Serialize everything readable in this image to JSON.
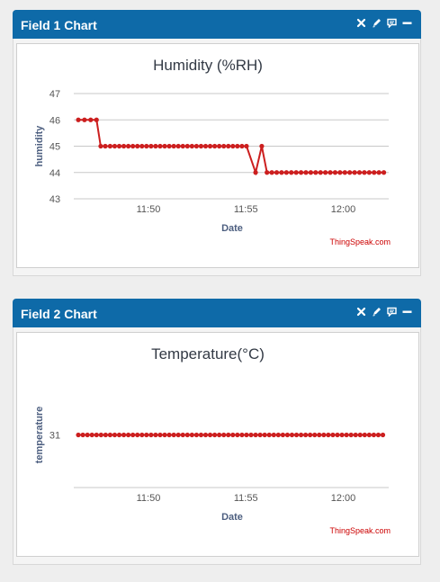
{
  "panels": [
    {
      "title": "Field 1 Chart",
      "icons": [
        "close-icon",
        "edit-icon",
        "comment-icon",
        "minimize-icon"
      ],
      "chart_data": {
        "type": "line",
        "title": "Humidity (%RH)",
        "xlabel": "Date",
        "ylabel": "humidity",
        "credit": "ThingSpeak.com",
        "color": "#cc1f1f",
        "ylim": [
          43,
          47
        ],
        "yticks": [
          43,
          44,
          45,
          46,
          47
        ],
        "xlim": [
          "11:46:10",
          "12:02:20"
        ],
        "xticks": [
          "11:50",
          "11:55",
          "12:00"
        ],
        "grid": true,
        "series": [
          {
            "x": [
              "11:46:24",
              "11:46:43",
              "11:47:02",
              "11:47:20",
              "11:47:33",
              "11:47:47",
              "11:48:02",
              "11:48:16",
              "11:48:30",
              "11:48:44",
              "11:48:58",
              "11:49:12",
              "11:49:26",
              "11:49:40",
              "11:49:54",
              "11:50:08",
              "11:50:22",
              "11:50:36",
              "11:50:50",
              "11:51:04",
              "11:51:18",
              "11:51:32",
              "11:51:46",
              "11:52:00",
              "11:52:14",
              "11:52:28",
              "11:52:42",
              "11:52:56",
              "11:53:10",
              "11:53:24",
              "11:53:38",
              "11:53:52",
              "11:54:06",
              "11:54:20",
              "11:54:34",
              "11:54:48",
              "11:55:02",
              "11:55:30",
              "11:55:49",
              "11:56:05",
              "11:56:20",
              "11:56:35",
              "11:56:50",
              "11:57:05",
              "11:57:20",
              "11:57:35",
              "11:57:50",
              "11:58:05",
              "11:58:20",
              "11:58:35",
              "11:58:50",
              "11:59:05",
              "11:59:20",
              "11:59:35",
              "11:59:50",
              "12:00:05",
              "12:00:20",
              "12:00:35",
              "12:00:50",
              "12:01:05",
              "12:01:20",
              "12:01:35",
              "12:01:50",
              "12:02:05"
            ],
            "y": [
              46,
              46,
              46,
              46,
              45,
              45,
              45,
              45,
              45,
              45,
              45,
              45,
              45,
              45,
              45,
              45,
              45,
              45,
              45,
              45,
              45,
              45,
              45,
              45,
              45,
              45,
              45,
              45,
              45,
              45,
              45,
              45,
              45,
              45,
              45,
              45,
              45,
              44,
              45,
              44,
              44,
              44,
              44,
              44,
              44,
              44,
              44,
              44,
              44,
              44,
              44,
              44,
              44,
              44,
              44,
              44,
              44,
              44,
              44,
              44,
              44,
              44,
              44,
              44
            ]
          }
        ]
      }
    },
    {
      "title": "Field 2 Chart",
      "icons": [
        "close-icon",
        "edit-icon",
        "comment-icon",
        "minimize-icon"
      ],
      "chart_data": {
        "type": "line",
        "title": "Temperature(°C)",
        "xlabel": "Date",
        "ylabel": "temperature",
        "credit": "ThingSpeak.com",
        "color": "#cc1f1f",
        "ylim": [
          29,
          33
        ],
        "yticks": [
          31
        ],
        "xlim": [
          "11:46:10",
          "12:02:20"
        ],
        "xticks": [
          "11:50",
          "11:55",
          "12:00"
        ],
        "grid": false,
        "series": [
          {
            "x": [
              "11:46:24",
              "11:46:38",
              "11:46:52",
              "11:47:06",
              "11:47:20",
              "11:47:34",
              "11:47:48",
              "11:48:02",
              "11:48:16",
              "11:48:30",
              "11:48:44",
              "11:48:58",
              "11:49:12",
              "11:49:26",
              "11:49:40",
              "11:49:54",
              "11:50:08",
              "11:50:22",
              "11:50:36",
              "11:50:50",
              "11:51:04",
              "11:51:18",
              "11:51:32",
              "11:51:46",
              "11:52:00",
              "11:52:14",
              "11:52:28",
              "11:52:42",
              "11:52:56",
              "11:53:10",
              "11:53:24",
              "11:53:38",
              "11:53:52",
              "11:54:06",
              "11:54:20",
              "11:54:34",
              "11:54:48",
              "11:55:02",
              "11:55:16",
              "11:55:30",
              "11:55:44",
              "11:55:58",
              "11:56:12",
              "11:56:26",
              "11:56:40",
              "11:56:54",
              "11:57:08",
              "11:57:22",
              "11:57:36",
              "11:57:50",
              "11:58:04",
              "11:58:18",
              "11:58:32",
              "11:58:46",
              "11:59:00",
              "11:59:14",
              "11:59:28",
              "11:59:42",
              "11:59:56",
              "12:00:10",
              "12:00:24",
              "12:00:38",
              "12:00:52",
              "12:01:06",
              "12:01:20",
              "12:01:34",
              "12:01:48",
              "12:02:02"
            ],
            "y": [
              31,
              31,
              31,
              31,
              31,
              31,
              31,
              31,
              31,
              31,
              31,
              31,
              31,
              31,
              31,
              31,
              31,
              31,
              31,
              31,
              31,
              31,
              31,
              31,
              31,
              31,
              31,
              31,
              31,
              31,
              31,
              31,
              31,
              31,
              31,
              31,
              31,
              31,
              31,
              31,
              31,
              31,
              31,
              31,
              31,
              31,
              31,
              31,
              31,
              31,
              31,
              31,
              31,
              31,
              31,
              31,
              31,
              31,
              31,
              31,
              31,
              31,
              31,
              31,
              31,
              31,
              31,
              31
            ]
          }
        ]
      }
    }
  ]
}
